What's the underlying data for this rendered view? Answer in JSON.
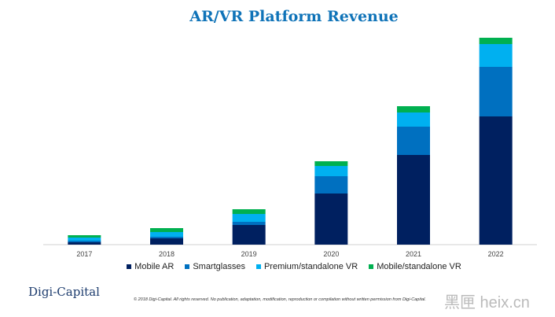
{
  "chart_data": {
    "type": "bar",
    "stacked": true,
    "title": "AR/VR Platform Revenue",
    "xlabel": "",
    "ylabel": "",
    "categories": [
      "2017",
      "2018",
      "2019",
      "2020",
      "2021",
      "2022"
    ],
    "series": [
      {
        "name": "Mobile AR",
        "color": "#002060",
        "values": [
          3,
          8,
          25,
          65,
          114,
          163
        ]
      },
      {
        "name": "Smartglasses",
        "color": "#0070c0",
        "values": [
          2,
          2,
          4,
          22,
          36,
          63
        ]
      },
      {
        "name": "Premium/standalone VR",
        "color": "#00b0f0",
        "values": [
          4,
          6,
          10,
          13,
          18,
          29
        ]
      },
      {
        "name": "Mobile/standalone VR",
        "color": "#00b050",
        "values": [
          3,
          5,
          6,
          6,
          8,
          8
        ]
      }
    ],
    "ylim": [
      0,
      263
    ],
    "grid": false,
    "legend": "bottom"
  },
  "footer": {
    "logo": "Digi-Capital",
    "copyright": "© 2018 Digi-Capital. All rights reserved. No publication, adaptation, modification, reproduction or compilation without written permission from Digi-Capital.",
    "watermark": "黑匣 heix.cn"
  }
}
